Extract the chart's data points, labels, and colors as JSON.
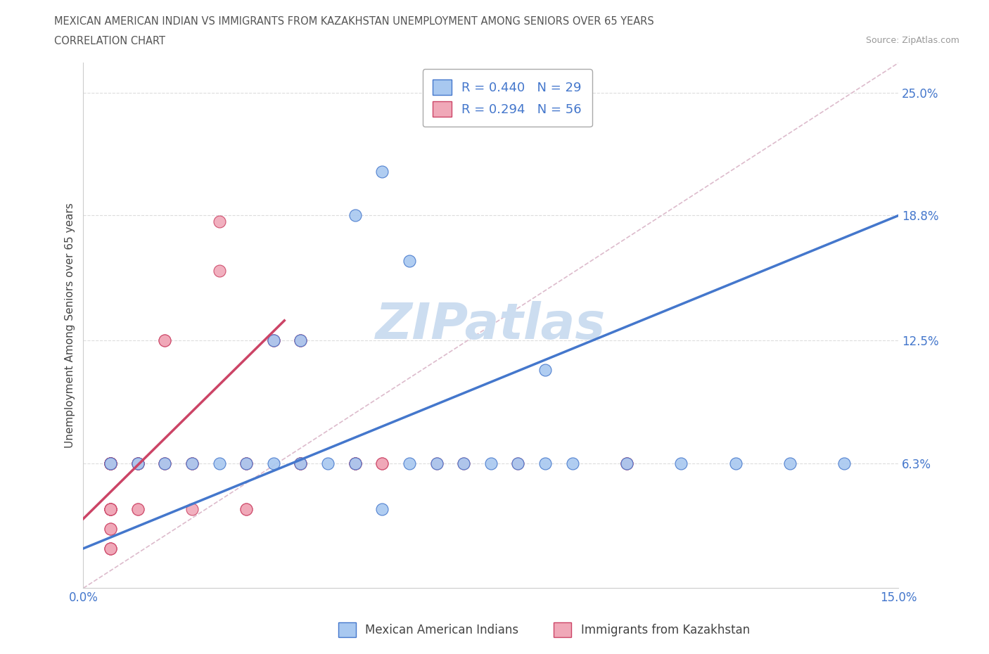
{
  "title_line1": "MEXICAN AMERICAN INDIAN VS IMMIGRANTS FROM KAZAKHSTAN UNEMPLOYMENT AMONG SENIORS OVER 65 YEARS",
  "title_line2": "CORRELATION CHART",
  "source": "Source: ZipAtlas.com",
  "ylabel": "Unemployment Among Seniors over 65 years",
  "xmin": 0.0,
  "xmax": 0.15,
  "ymin": 0.0,
  "ymax": 0.265,
  "ytick_labels": [
    "6.3%",
    "12.5%",
    "18.8%",
    "25.0%"
  ],
  "ytick_values": [
    0.063,
    0.125,
    0.188,
    0.25
  ],
  "xtick_labels": [
    "0.0%",
    "15.0%"
  ],
  "xtick_values": [
    0.0,
    0.15
  ],
  "blue_scatter_x": [
    0.005,
    0.01,
    0.015,
    0.02,
    0.025,
    0.03,
    0.035,
    0.04,
    0.045,
    0.05,
    0.055,
    0.06,
    0.065,
    0.07,
    0.075,
    0.08,
    0.085,
    0.09,
    0.1,
    0.11,
    0.12,
    0.13,
    0.035,
    0.04,
    0.05,
    0.06,
    0.085,
    0.14,
    0.055
  ],
  "blue_scatter_y": [
    0.063,
    0.063,
    0.063,
    0.063,
    0.063,
    0.063,
    0.063,
    0.063,
    0.063,
    0.063,
    0.04,
    0.063,
    0.063,
    0.063,
    0.063,
    0.063,
    0.063,
    0.063,
    0.063,
    0.063,
    0.063,
    0.063,
    0.125,
    0.125,
    0.188,
    0.165,
    0.11,
    0.063,
    0.21
  ],
  "pink_scatter_x": [
    0.005,
    0.005,
    0.005,
    0.005,
    0.005,
    0.005,
    0.005,
    0.005,
    0.005,
    0.005,
    0.005,
    0.005,
    0.005,
    0.005,
    0.005,
    0.005,
    0.005,
    0.005,
    0.005,
    0.005,
    0.01,
    0.01,
    0.01,
    0.01,
    0.01,
    0.01,
    0.015,
    0.015,
    0.015,
    0.015,
    0.02,
    0.02,
    0.02,
    0.025,
    0.025,
    0.03,
    0.03,
    0.03,
    0.03,
    0.035,
    0.035,
    0.04,
    0.04,
    0.04,
    0.04,
    0.04,
    0.05,
    0.05,
    0.05,
    0.055,
    0.055,
    0.065,
    0.07,
    0.08,
    0.1,
    0.1
  ],
  "pink_scatter_y": [
    0.063,
    0.063,
    0.063,
    0.063,
    0.063,
    0.063,
    0.063,
    0.063,
    0.063,
    0.063,
    0.04,
    0.04,
    0.04,
    0.04,
    0.04,
    0.03,
    0.03,
    0.02,
    0.02,
    0.02,
    0.063,
    0.063,
    0.063,
    0.063,
    0.04,
    0.04,
    0.125,
    0.125,
    0.063,
    0.063,
    0.063,
    0.063,
    0.04,
    0.16,
    0.185,
    0.063,
    0.063,
    0.04,
    0.04,
    0.125,
    0.125,
    0.125,
    0.125,
    0.063,
    0.063,
    0.063,
    0.063,
    0.063,
    0.063,
    0.063,
    0.063,
    0.063,
    0.063,
    0.063,
    0.063,
    0.063
  ],
  "blue_R": 0.44,
  "blue_N": 29,
  "pink_R": 0.294,
  "pink_N": 56,
  "blue_color": "#a8c8f0",
  "pink_color": "#f0a8b8",
  "blue_line_color": "#4477cc",
  "pink_line_color": "#cc4466",
  "diagonal_color": "#ddbbcc",
  "watermark_color": "#ccddf0",
  "legend_label_blue": "Mexican American Indians",
  "legend_label_pink": "Immigrants from Kazakhstan"
}
